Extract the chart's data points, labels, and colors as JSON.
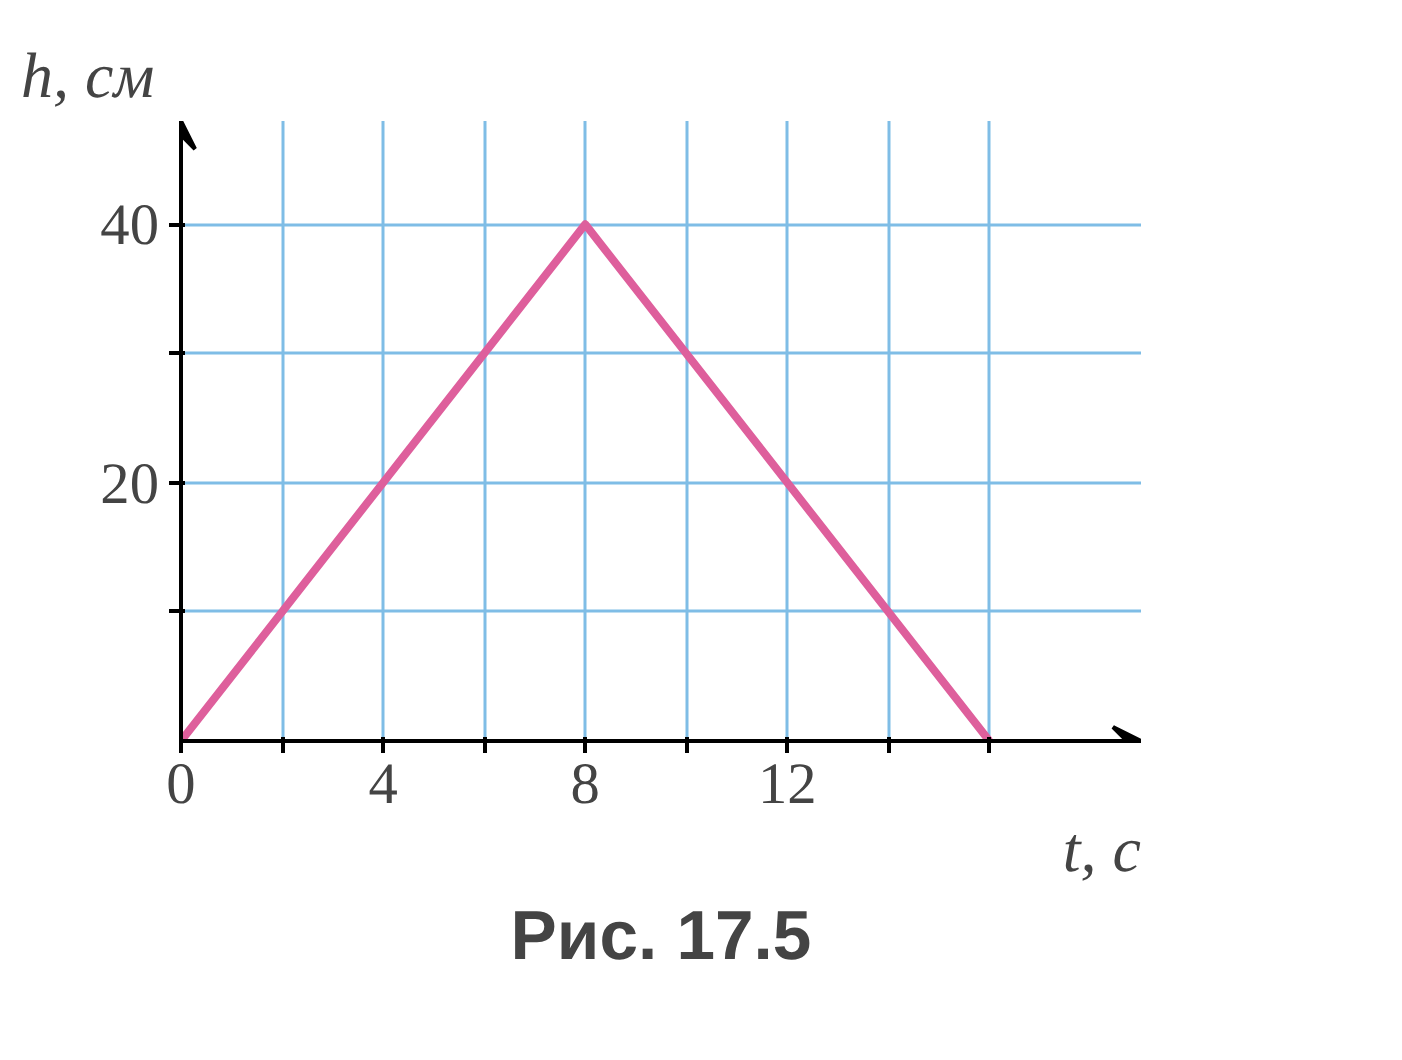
{
  "chart_data": {
    "type": "line",
    "xlabel": "t, с",
    "ylabel": "h, см",
    "x": [
      0,
      8,
      16
    ],
    "series": [
      {
        "color": "#de5f9c",
        "values": [
          0,
          40,
          0
        ]
      }
    ],
    "xlim": [
      0,
      19
    ],
    "ylim": [
      0,
      48
    ],
    "xticks": [
      0,
      {
        "value": 2,
        "label": null
      },
      4,
      {
        "value": 6,
        "label": null
      },
      8,
      {
        "value": 10,
        "label": null
      },
      12,
      {
        "value": 14,
        "label": null
      },
      {
        "value": 16,
        "label": null
      }
    ],
    "yticks": [
      {
        "value": 10,
        "label": null
      },
      20,
      {
        "value": 30,
        "label": null
      },
      40
    ],
    "grid": true,
    "marker": "none",
    "line_style": "solid",
    "annotations": [
      "Рис. 17.5"
    ]
  }
}
